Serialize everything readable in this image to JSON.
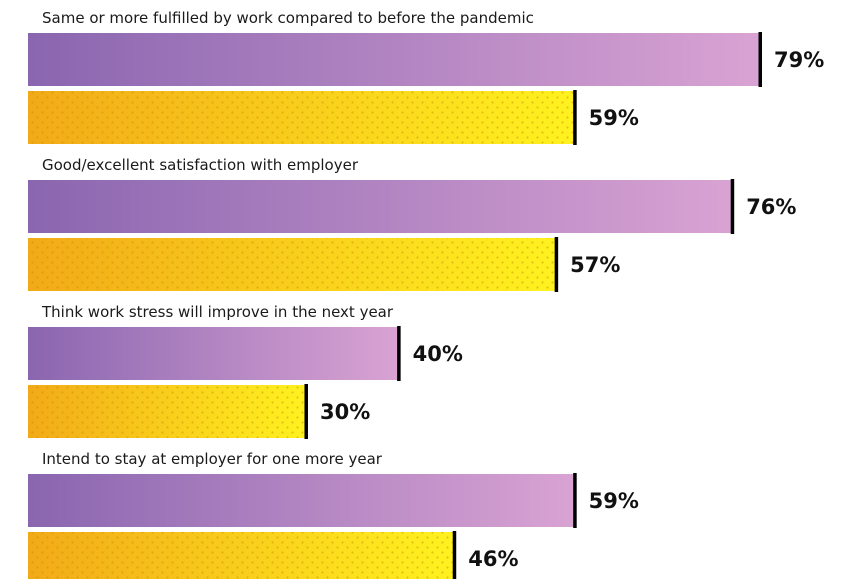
{
  "chart_data": {
    "type": "bar",
    "orientation": "horizontal",
    "title": "",
    "xlabel": "",
    "ylabel": "",
    "xlim": [
      0,
      100
    ],
    "grid": false,
    "legend": "none",
    "value_suffix": "%",
    "categories": [
      "Same or more fulfilled by work compared to before the pandemic",
      "Good/excellent satisfaction with employer",
      "Think work stress will improve in the next year",
      "Intend to stay at employer for one more year"
    ],
    "series": [
      {
        "color_start": "#8a66b0",
        "color_end": "#d9a3d3",
        "values": [
          79,
          76,
          40,
          59
        ]
      },
      {
        "color_start": "#f2aa18",
        "color_end": "#fff21f",
        "pattern": "dots",
        "values": [
          59,
          57,
          30,
          46
        ]
      }
    ]
  }
}
